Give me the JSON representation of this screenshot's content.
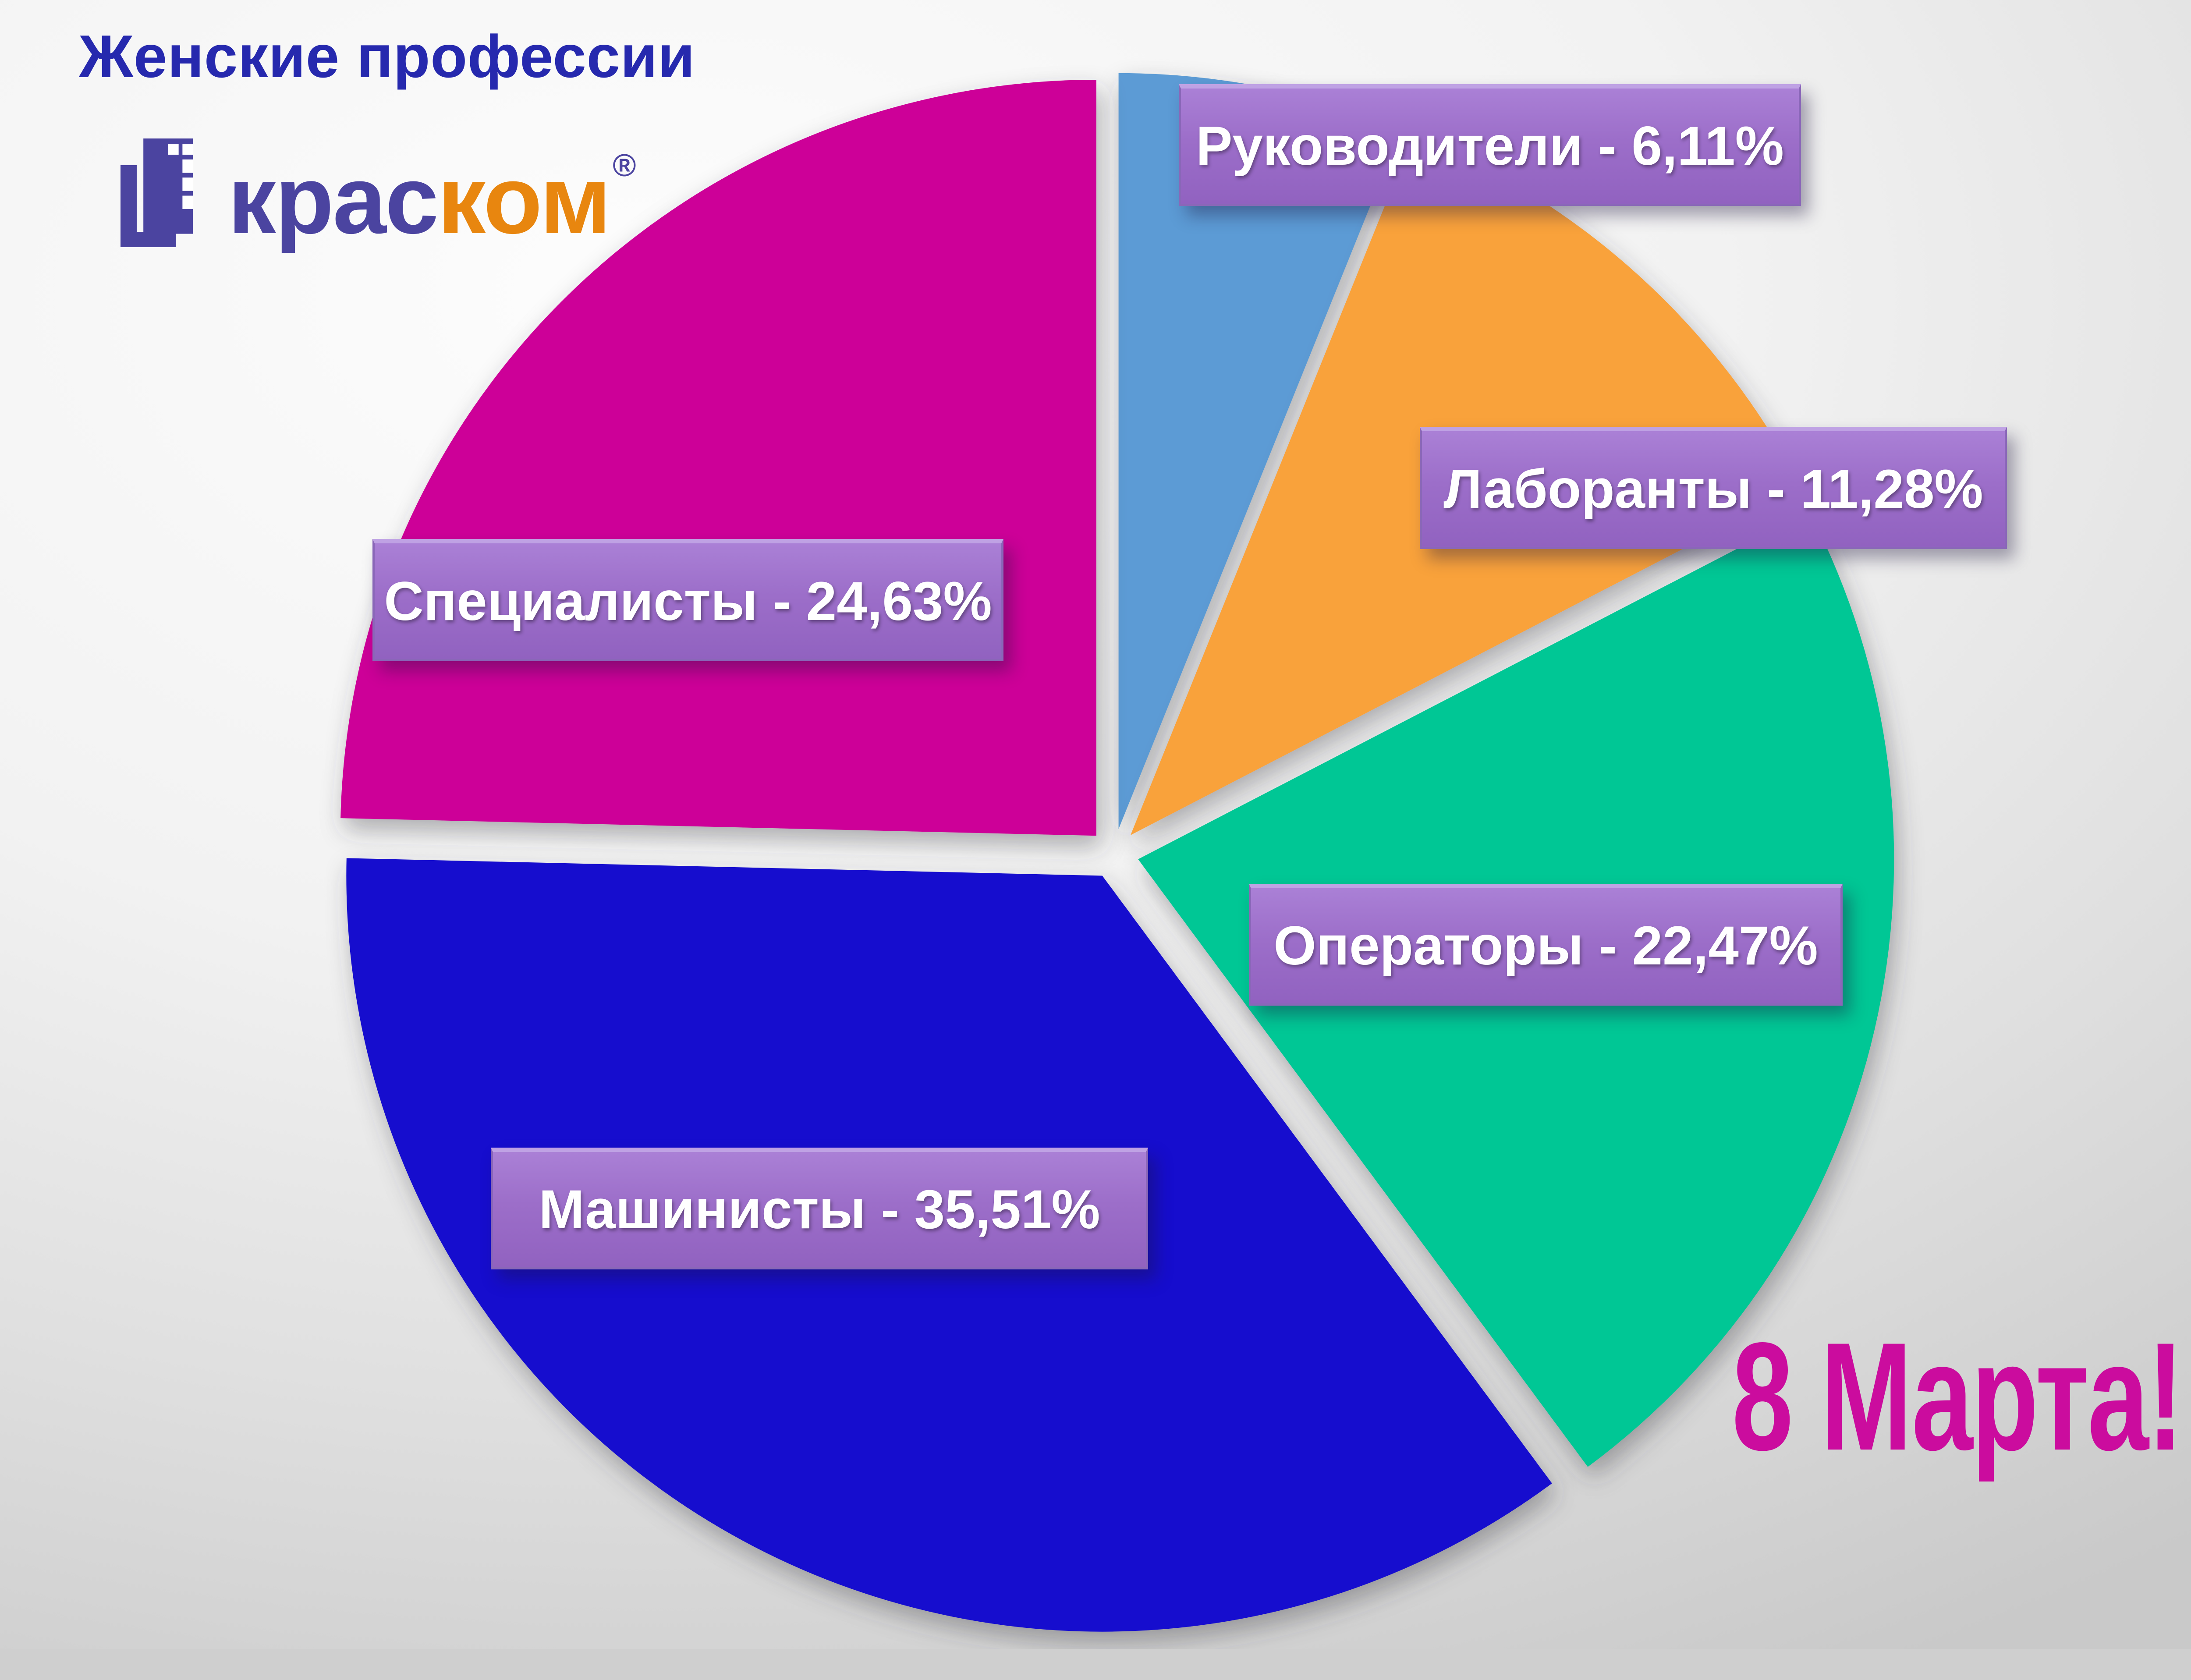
{
  "title": "Женские профессии",
  "logo": {
    "text_blue": "крас",
    "text_orange": "ком",
    "registered_mark": "®"
  },
  "decor": {
    "celebration_text": "8 Марта!"
  },
  "palette": {
    "background_light": "#FDFDFD",
    "background_dark": "#C9C9C9",
    "title_color": "#2629AE",
    "logo_blue": "#4B44A0",
    "logo_orange": "#E8860F",
    "label_box_color": "#9C6EC9",
    "label_text_color": "#FFFFFF",
    "celebration_color": "#CB0C9E"
  },
  "chart_data": {
    "type": "pie",
    "title": "Женские профессии",
    "unit": "%",
    "start_angle_deg": -90,
    "direction": "clockwise",
    "explode": true,
    "legend_position": "callout-boxes",
    "slices": [
      {
        "id": "rukovoditeli",
        "label": "Руководители",
        "value": 6.11,
        "display": "Руководители - 6,11%",
        "color": "#5B9BD5"
      },
      {
        "id": "laboranty",
        "label": "Лаборанты",
        "value": 11.28,
        "display": "Лаборанты - 11,28%",
        "color": "#F9A23A"
      },
      {
        "id": "operatory",
        "label": "Операторы",
        "value": 22.47,
        "display": "Операторы - 22,47%",
        "color": "#04C795"
      },
      {
        "id": "mashinisty",
        "label": "Машинисты",
        "value": 35.51,
        "display": "Машинисты - 35,51%",
        "color": "#1410CE"
      },
      {
        "id": "specialisty",
        "label": "Специалисты",
        "value": 24.63,
        "display": "Специалисты - 24,63%",
        "color": "#CD0098"
      }
    ]
  }
}
